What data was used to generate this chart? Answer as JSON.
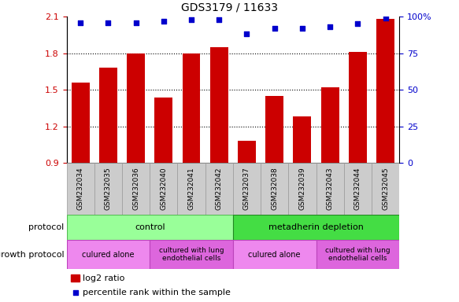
{
  "title": "GDS3179 / 11633",
  "samples": [
    "GSM232034",
    "GSM232035",
    "GSM232036",
    "GSM232040",
    "GSM232041",
    "GSM232042",
    "GSM232037",
    "GSM232038",
    "GSM232039",
    "GSM232043",
    "GSM232044",
    "GSM232045"
  ],
  "log2_ratio": [
    1.56,
    1.68,
    1.8,
    1.44,
    1.8,
    1.85,
    1.08,
    1.45,
    1.28,
    1.52,
    1.81,
    2.08
  ],
  "percentile_rank": [
    96,
    96,
    96,
    97,
    98,
    98,
    88,
    92,
    92,
    93,
    95,
    99
  ],
  "ylim_left": [
    0.9,
    2.1
  ],
  "ylim_right": [
    0,
    100
  ],
  "yticks_left": [
    0.9,
    1.2,
    1.5,
    1.8,
    2.1
  ],
  "yticks_right": [
    0,
    25,
    50,
    75,
    100
  ],
  "bar_color": "#cc0000",
  "dot_color": "#0000cc",
  "bar_width": 0.65,
  "protocol_control_label": "control",
  "protocol_metadherin_label": "metadherin depletion",
  "growth_culured_alone_label": "culured alone",
  "growth_cultured_lung_label": "cultured with lung\nendothelial cells",
  "protocol_row_label": "protocol",
  "growth_protocol_row_label": "growth protocol",
  "legend_bar_label": "log2 ratio",
  "legend_dot_label": "percentile rank within the sample",
  "bg_color": "#ffffff",
  "light_green": "#99ff99",
  "green": "#44dd44",
  "light_purple": "#ee88ee",
  "grey_sample": "#cccccc",
  "grey_sample_edge": "#999999"
}
